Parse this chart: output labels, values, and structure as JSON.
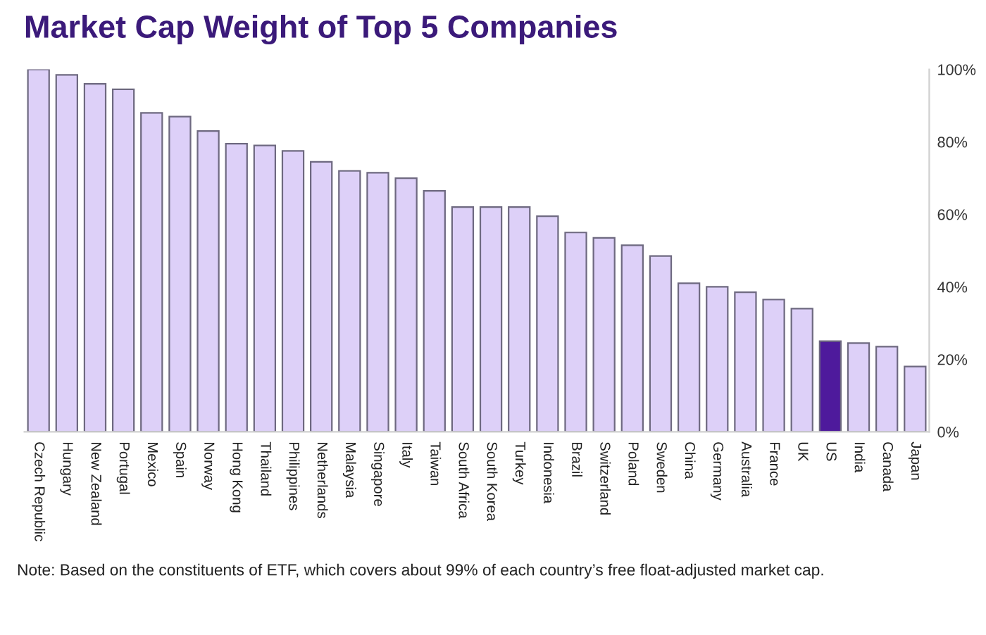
{
  "chart_data": {
    "type": "bar",
    "title": "Market Cap Weight of Top 5 Companies",
    "categories": [
      "Czech Republic",
      "Hungary",
      "New Zealand",
      "Portugal",
      "Mexico",
      "Spain",
      "Norway",
      "Hong Kong",
      "Thailand",
      "Philippines",
      "Netherlands",
      "Malaysia",
      "Singapore",
      "Italy",
      "Taiwan",
      "South Africa",
      "South Korea",
      "Turkey",
      "Indonesia",
      "Brazil",
      "Switzerland",
      "Poland",
      "Sweden",
      "China",
      "Germany",
      "Australia",
      "France",
      "UK",
      "US",
      "India",
      "Canada",
      "Japan"
    ],
    "values": [
      100,
      98.5,
      96,
      94.5,
      88,
      87,
      83,
      79.5,
      79,
      77.5,
      74.5,
      72,
      71.5,
      70,
      66.5,
      62,
      62,
      62,
      59.5,
      55,
      53.5,
      51.5,
      48.5,
      41,
      40,
      38.5,
      36.5,
      34,
      25,
      24.5,
      23.5,
      18
    ],
    "colors": [
      "#ddd0f8",
      "#ddd0f8",
      "#ddd0f8",
      "#ddd0f8",
      "#ddd0f8",
      "#ddd0f8",
      "#ddd0f8",
      "#ddd0f8",
      "#ddd0f8",
      "#ddd0f8",
      "#ddd0f8",
      "#ddd0f8",
      "#ddd0f8",
      "#ddd0f8",
      "#ddd0f8",
      "#ddd0f8",
      "#ddd0f8",
      "#ddd0f8",
      "#ddd0f8",
      "#ddd0f8",
      "#ddd0f8",
      "#ddd0f8",
      "#ddd0f8",
      "#ddd0f8",
      "#ddd0f8",
      "#ddd0f8",
      "#ddd0f8",
      "#ddd0f8",
      "#4e1a9c",
      "#ddd0f8",
      "#ddd0f8",
      "#ddd0f8"
    ],
    "ylim": [
      0,
      100
    ],
    "yticks": [
      {
        "value": 0,
        "label": "0%"
      },
      {
        "value": 20,
        "label": "20%"
      },
      {
        "value": 40,
        "label": "40%"
      },
      {
        "value": 60,
        "label": "60%"
      },
      {
        "value": 80,
        "label": "80%"
      },
      {
        "value": 100,
        "label": "100%"
      }
    ],
    "annotations": [
      "Note: Based on the constituents of ETF, which covers about 99% of each country’s free float-adjusted market cap."
    ]
  }
}
